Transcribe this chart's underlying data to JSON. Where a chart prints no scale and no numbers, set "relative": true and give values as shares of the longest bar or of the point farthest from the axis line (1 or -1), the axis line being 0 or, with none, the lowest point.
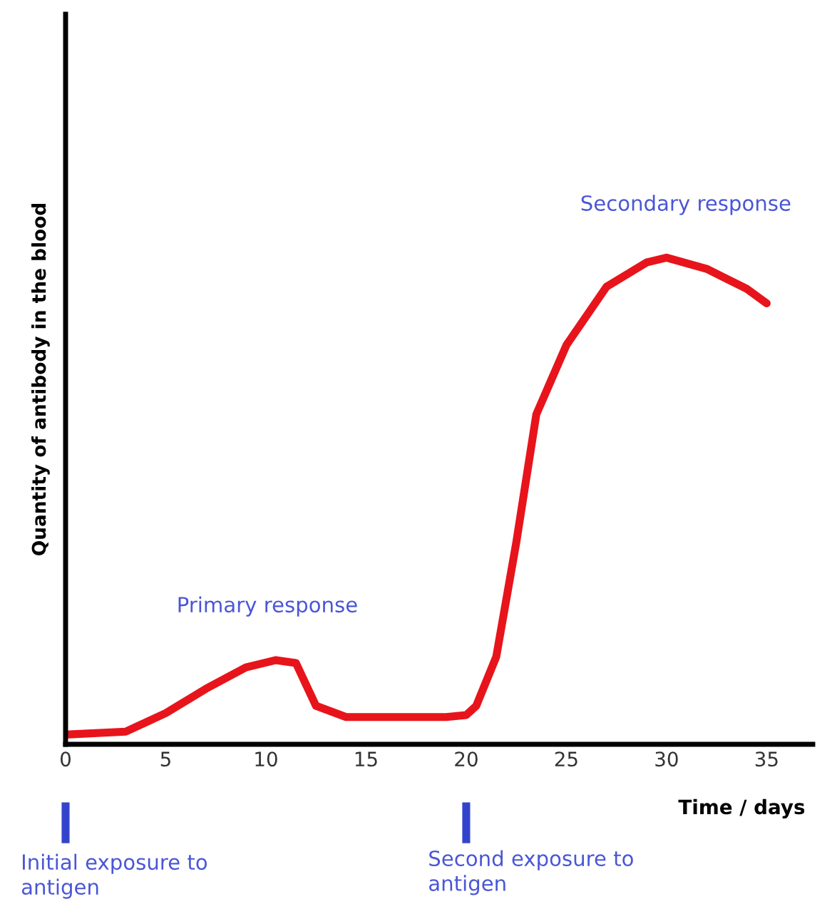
{
  "chart_data": {
    "type": "line",
    "relative": true,
    "xlabel": "Time / days",
    "ylabel": "Quantity of antibody in the blood",
    "xlim": [
      0,
      37.3
    ],
    "xticks": [
      0,
      5,
      10,
      15,
      20,
      25,
      30,
      35
    ],
    "tick_labels": "x",
    "grid": false,
    "legend": false,
    "marker": "none",
    "line_style": "solid",
    "series": [
      {
        "color": "#e8141b",
        "x": [
          0,
          3,
          5,
          7,
          9,
          10.5,
          11.5,
          12,
          12.5,
          14,
          19,
          20,
          20.5,
          21.5,
          22.5,
          23.5,
          25,
          27,
          29,
          30,
          32,
          34,
          35
        ],
        "values": [
          0.02,
          0.026,
          0.064,
          0.114,
          0.158,
          0.173,
          0.167,
          0.123,
          0.079,
          0.056,
          0.056,
          0.06,
          0.079,
          0.18,
          0.415,
          0.678,
          0.82,
          0.94,
          0.99,
          1,
          0.977,
          0.936,
          0.906
        ]
      }
    ],
    "annotations": [
      "Primary response",
      "Secondary response",
      "Initial exposure to antigen",
      "Second exposure to antigen"
    ]
  }
}
